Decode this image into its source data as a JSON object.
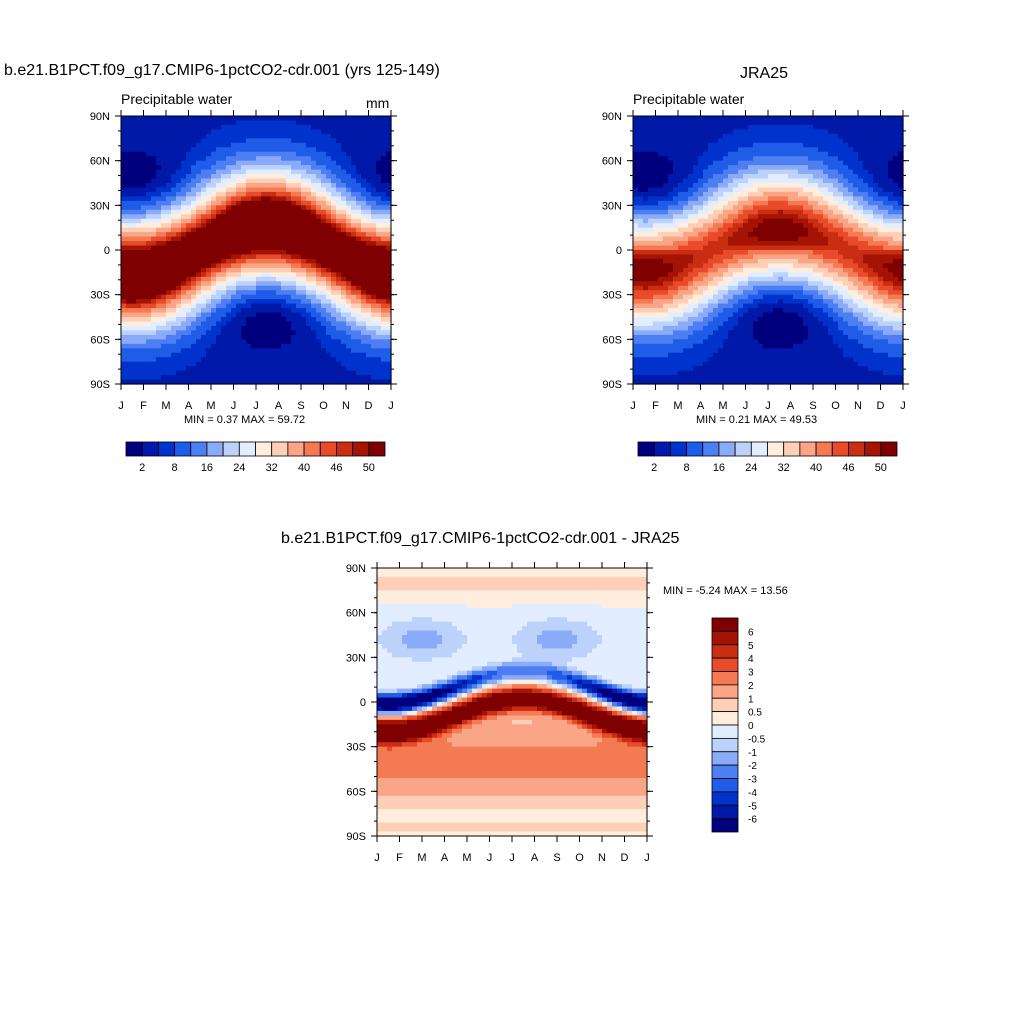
{
  "chart_data": [
    {
      "type": "heatmap",
      "title": "b.e21.B1PCT.f09_g17.CMIP6-1pctCO2-cdr.001 (yrs 125-149)",
      "subtitle_left": "Precipitable water",
      "units": "mm",
      "xlabel": "",
      "ylabel": "",
      "x_ticks": [
        "J",
        "F",
        "M",
        "A",
        "M",
        "J",
        "J",
        "A",
        "S",
        "O",
        "N",
        "D",
        "J"
      ],
      "y_ticks": [
        "90N",
        "60N",
        "30N",
        "0",
        "30S",
        "60S",
        "90S"
      ],
      "ylim": [
        -90,
        90
      ],
      "stats": "MIN =   0.37 MAX =  59.72",
      "min": 0.37,
      "max": 59.72,
      "equator_max": 58,
      "shift": 12,
      "colorbar": {
        "orientation": "horizontal",
        "levels": [
          2,
          5,
          8,
          12,
          16,
          20,
          24,
          28,
          32,
          36,
          40,
          43,
          46,
          48,
          50
        ],
        "labels": [
          "2",
          "8",
          "16",
          "24",
          "32",
          "40",
          "46",
          "50"
        ],
        "colors": [
          "#00007f",
          "#0019a8",
          "#0033cc",
          "#1f5ce8",
          "#4d7ff2",
          "#8aabf7",
          "#bcd2fb",
          "#e2edff",
          "#ffeedd",
          "#fdcfb6",
          "#f9a586",
          "#f37a52",
          "#e84a2a",
          "#c92e13",
          "#a51305",
          "#7f0000"
        ]
      }
    },
    {
      "type": "heatmap",
      "title": "JRA25",
      "subtitle_left": "Precipitable water",
      "x_ticks": [
        "J",
        "F",
        "M",
        "A",
        "M",
        "J",
        "J",
        "A",
        "S",
        "O",
        "N",
        "D",
        "J"
      ],
      "y_ticks": [
        "90N",
        "60N",
        "30N",
        "0",
        "30S",
        "60S",
        "90S"
      ],
      "ylim": [
        -90,
        90
      ],
      "stats": "MIN =   0.21 MAX =  49.53",
      "min": 0.21,
      "max": 49.53,
      "equator_max": 47,
      "shift": 10,
      "colorbar": {
        "orientation": "horizontal",
        "levels": [
          2,
          5,
          8,
          12,
          16,
          20,
          24,
          28,
          32,
          36,
          40,
          43,
          46,
          48,
          50
        ],
        "labels": [
          "2",
          "8",
          "16",
          "24",
          "32",
          "40",
          "46",
          "50"
        ],
        "colors": [
          "#00007f",
          "#0019a8",
          "#0033cc",
          "#1f5ce8",
          "#4d7ff2",
          "#8aabf7",
          "#bcd2fb",
          "#e2edff",
          "#ffeedd",
          "#fdcfb6",
          "#f9a586",
          "#f37a52",
          "#e84a2a",
          "#c92e13",
          "#a51305",
          "#7f0000"
        ]
      }
    },
    {
      "type": "heatmap",
      "title": "b.e21.B1PCT.f09_g17.CMIP6-1pctCO2-cdr.001 - JRA25",
      "x_ticks": [
        "J",
        "F",
        "M",
        "A",
        "M",
        "J",
        "J",
        "A",
        "S",
        "O",
        "N",
        "D",
        "J"
      ],
      "y_ticks": [
        "90N",
        "60N",
        "30N",
        "0",
        "30S",
        "60S",
        "90S"
      ],
      "ylim": [
        -90,
        90
      ],
      "stats": "MIN =  -5.24 MAX =  13.56",
      "min": -5.24,
      "max": 13.56,
      "colorbar": {
        "orientation": "vertical",
        "levels": [
          -6,
          -5,
          -4,
          -3,
          -2,
          -1,
          -0.5,
          0,
          0.5,
          1,
          2,
          3,
          4,
          5,
          6
        ],
        "labels": [
          "6",
          "5",
          "4",
          "3",
          "2",
          "1",
          "0.5",
          "0",
          "-0.5",
          "-1",
          "-2",
          "-3",
          "-4",
          "-5",
          "-6"
        ],
        "colors": [
          "#00007f",
          "#0019a8",
          "#0033cc",
          "#1f5ce8",
          "#4d7ff2",
          "#8aabf7",
          "#bcd2fb",
          "#e2edff",
          "#ffeedd",
          "#fdcfb6",
          "#f9a586",
          "#f37a52",
          "#e84a2a",
          "#c92e13",
          "#a51305",
          "#7f0000"
        ]
      }
    }
  ]
}
